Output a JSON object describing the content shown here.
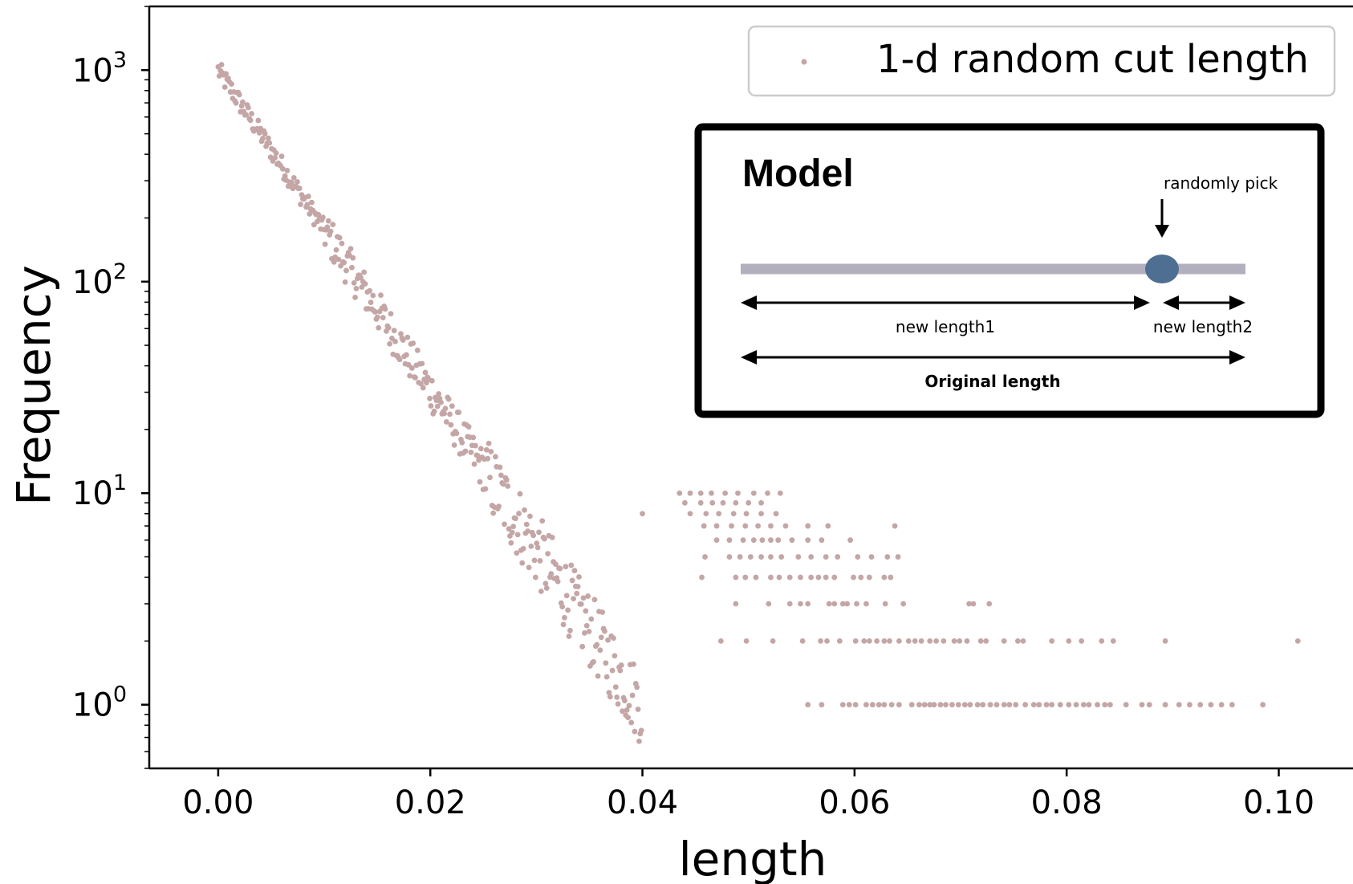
{
  "chart_data": {
    "type": "scatter",
    "xlabel": "length",
    "ylabel": "Frequency",
    "xlim": [
      -0.0065,
      0.107
    ],
    "ylim": [
      0.5,
      2000
    ],
    "yscale": "log",
    "grid": false,
    "xticks": [
      "0.00",
      "0.02",
      "0.04",
      "0.06",
      "0.08",
      "0.10"
    ],
    "yticks": [
      {
        "base": "10",
        "exp": "0",
        "value": 1
      },
      {
        "base": "10",
        "exp": "1",
        "value": 10
      },
      {
        "base": "10",
        "exp": "2",
        "value": 100
      },
      {
        "base": "10",
        "exp": "3",
        "value": 1000
      }
    ],
    "legend": {
      "position": "top-right",
      "label": "1-d random cut length"
    },
    "series": [
      {
        "name": "1-d random cut length",
        "color": "#c4a6a6",
        "decay_fit": {
          "y0": 1000,
          "scale": 0.00575,
          "x_end": 0.047,
          "x_step": 0.000105
        },
        "sparse_points": {
          "10": [
            0.0435,
            0.0445,
            0.0455,
            0.0465,
            0.0478,
            0.049,
            0.0505,
            0.0518,
            0.053
          ],
          "9": [
            0.044,
            0.0455,
            0.0466,
            0.0476,
            0.0488,
            0.05,
            0.0512
          ],
          "8": [
            0.04,
            0.0445,
            0.046,
            0.0472,
            0.0486,
            0.0498,
            0.0512,
            0.0526
          ],
          "7": [
            0.0458,
            0.047,
            0.0484,
            0.0497,
            0.0509,
            0.0521,
            0.0535,
            0.0556,
            0.0575,
            0.0638
          ],
          "6": [
            0.047,
            0.0482,
            0.0495,
            0.0505,
            0.0513,
            0.0521,
            0.0528,
            0.0541,
            0.0556,
            0.0569,
            0.0596
          ],
          "5": [
            0.0459,
            0.0482,
            0.0492,
            0.0502,
            0.0512,
            0.0521,
            0.0531,
            0.0547,
            0.0559,
            0.0573,
            0.0584,
            0.0603,
            0.0616,
            0.0631,
            0.0641
          ],
          "4": [
            0.0456,
            0.0488,
            0.0497,
            0.0507,
            0.0521,
            0.0529,
            0.0539,
            0.0549,
            0.0559,
            0.0566,
            0.0573,
            0.0581,
            0.0599,
            0.0606,
            0.0614,
            0.0628,
            0.0634
          ],
          "3": [
            0.0488,
            0.0519,
            0.0539,
            0.0549,
            0.0556,
            0.0576,
            0.0581,
            0.0589,
            0.0593,
            0.0602,
            0.0611,
            0.0629,
            0.0646,
            0.0708,
            0.0712,
            0.0727
          ],
          "2": [
            0.0474,
            0.0498,
            0.0523,
            0.0551,
            0.0568,
            0.0574,
            0.0586,
            0.0601,
            0.0609,
            0.0614,
            0.0621,
            0.0628,
            0.0633,
            0.0642,
            0.0651,
            0.0657,
            0.0663,
            0.0671,
            0.0677,
            0.0684,
            0.0694,
            0.0699,
            0.0706,
            0.0719,
            0.0724,
            0.0741,
            0.0754,
            0.0759,
            0.0786,
            0.0802,
            0.0814,
            0.0833,
            0.0844,
            0.0893,
            0.1018
          ],
          "1": [
            0.0556,
            0.0569,
            0.0589,
            0.0595,
            0.0601,
            0.0611,
            0.0617,
            0.0623,
            0.0628,
            0.0635,
            0.0642,
            0.0654,
            0.0661,
            0.0666,
            0.0671,
            0.0675,
            0.0681,
            0.0686,
            0.0692,
            0.0698,
            0.0704,
            0.0709,
            0.0716,
            0.0721,
            0.0728,
            0.0734,
            0.0741,
            0.0746,
            0.0752,
            0.0761,
            0.0769,
            0.0774,
            0.0781,
            0.0786,
            0.0794,
            0.0802,
            0.0809,
            0.0816,
            0.0821,
            0.0829,
            0.0836,
            0.0841,
            0.0856,
            0.0871,
            0.0878,
            0.0893,
            0.0906,
            0.0916,
            0.0926,
            0.0936,
            0.0946,
            0.0956,
            0.0985
          ]
        }
      }
    ],
    "inset": {
      "title": "Model",
      "pick_label": "randomly pick",
      "segment1_label": "new length1",
      "segment2_label": "new length2",
      "original_label": "Original length",
      "bar_color": "#b2b0bf",
      "marker_color": "#4f6f92"
    }
  }
}
